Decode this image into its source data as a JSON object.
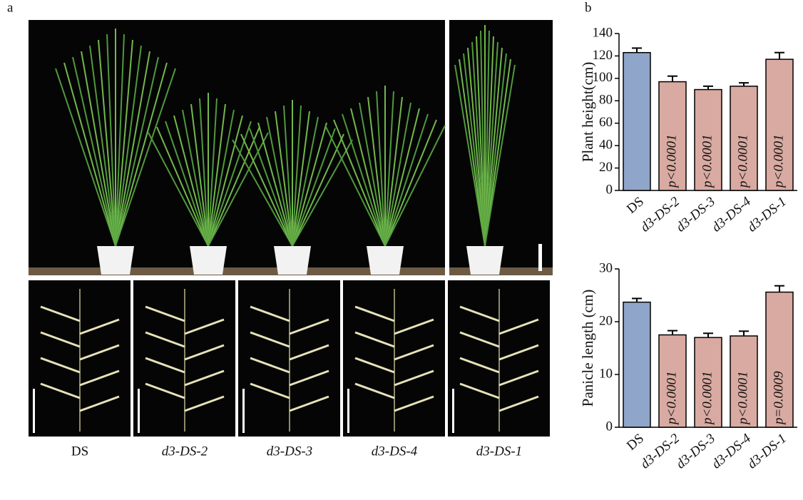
{
  "panel_labels": [
    "a",
    "b"
  ],
  "photo_labels": [
    "DS",
    "d3-DS-2",
    "d3-DS-3",
    "d3-DS-4",
    "d3-DS-1"
  ],
  "chart_data": [
    {
      "type": "bar",
      "y_label": "Plant height(cm)",
      "categories": [
        "DS",
        "d3-DS-2",
        "d3-DS-3",
        "d3-DS-4",
        "d3-DS-1"
      ],
      "values": [
        123,
        97,
        90,
        93,
        117
      ],
      "errors": [
        4,
        5,
        3,
        3,
        6
      ],
      "annotations": [
        null,
        "p<0.0001",
        "p<0.0001",
        "p<0.0001",
        "p<0.0001"
      ],
      "colors": [
        "#8fa5c9",
        "#d9aaa1",
        "#d9aaa1",
        "#d9aaa1",
        "#d9aaa1"
      ],
      "ylim": [
        0,
        140
      ],
      "yticks": [
        0,
        20,
        40,
        60,
        80,
        100,
        120,
        140
      ]
    },
    {
      "type": "bar",
      "y_label": "Panicle length (cm)",
      "categories": [
        "DS",
        "d3-DS-2",
        "d3-DS-3",
        "d3-DS-4",
        "d3-DS-1"
      ],
      "values": [
        23.7,
        17.5,
        17.0,
        17.3,
        25.6
      ],
      "errors": [
        0.7,
        0.8,
        0.8,
        0.9,
        1.2
      ],
      "annotations": [
        null,
        "p<0.0001",
        "p<0.0001",
        "p<0.0001",
        "p=0.0009"
      ],
      "colors": [
        "#8fa5c9",
        "#d9aaa1",
        "#d9aaa1",
        "#d9aaa1",
        "#d9aaa1"
      ],
      "ylim": [
        0,
        30
      ],
      "yticks": [
        0,
        10,
        20,
        30
      ]
    }
  ]
}
